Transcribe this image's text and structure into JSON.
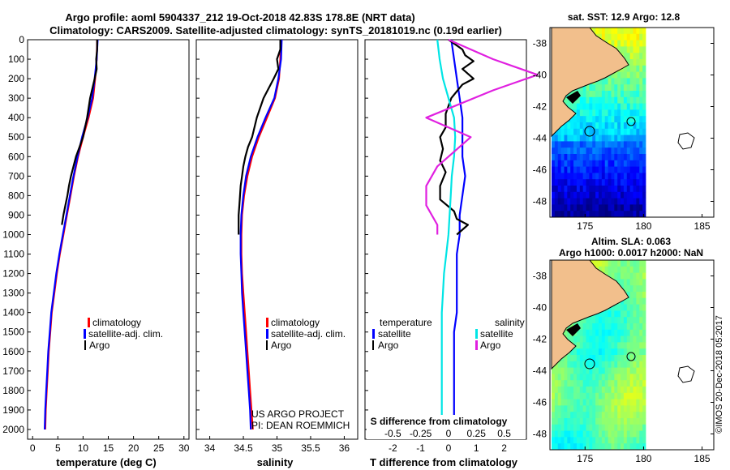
{
  "title_line1": "Argo profile: aoml 5904337_212 19-Oct-2018 42.83S 178.8E (NRT data)",
  "title_line2": "Climatology: CARS2009. Satellite-adjusted climatology: synTS_20181019.nc (0.19d earlier)",
  "credit_line1": "US ARGO PROJECT",
  "credit_line2": "PI: DEAN ROEMMICH",
  "copyright": "©IMOS 20-Dec-2018 05:2017",
  "colors": {
    "climatology": "#ff0000",
    "satellite": "#0000ff",
    "argo": "#000000",
    "sat_s": "#00e5e5",
    "argo_s": "#e020e0",
    "land": "#f2bf8c"
  },
  "chart_data": [
    {
      "id": "temperature",
      "type": "line",
      "xlabel": "temperature (deg C)",
      "ylabel": "",
      "xlim": [
        -1,
        31
      ],
      "ylim": [
        2050,
        0
      ],
      "xticks": [
        0,
        5,
        10,
        15,
        20,
        25,
        30
      ],
      "yticks": [
        0,
        100,
        200,
        300,
        400,
        500,
        600,
        700,
        800,
        900,
        1000,
        1100,
        1200,
        1300,
        1400,
        1500,
        1600,
        1700,
        1800,
        1900,
        2000
      ],
      "legend": [
        "climatology",
        "satellite-adj. clim.",
        "Argo"
      ],
      "series": [
        {
          "name": "climatology",
          "color": "#ff0000",
          "x": [
            12.8,
            12.7,
            12.4,
            12.0,
            11.1,
            10.0,
            9.0,
            8.2,
            7.5,
            6.8,
            6.1,
            5.4,
            4.8,
            4.3,
            3.8,
            3.5,
            3.2,
            3.0,
            2.8,
            2.6,
            2.5
          ],
          "y": [
            0,
            100,
            200,
            300,
            400,
            500,
            600,
            700,
            800,
            900,
            1000,
            1100,
            1200,
            1300,
            1400,
            1500,
            1600,
            1700,
            1800,
            1900,
            2000
          ]
        },
        {
          "name": "satellite-adj. clim.",
          "color": "#0000ff",
          "x": [
            12.9,
            12.7,
            12.3,
            11.8,
            10.9,
            9.8,
            8.9,
            8.1,
            7.4,
            6.7,
            6.0,
            5.3,
            4.7,
            4.2,
            3.7,
            3.4,
            3.1,
            2.9,
            2.7,
            2.5,
            2.4
          ],
          "y": [
            0,
            100,
            200,
            300,
            400,
            500,
            600,
            700,
            800,
            900,
            1000,
            1100,
            1200,
            1300,
            1400,
            1500,
            1600,
            1700,
            1800,
            1900,
            2000
          ]
        },
        {
          "name": "Argo",
          "color": "#000000",
          "x": [
            12.8,
            12.8,
            12.6,
            12.7,
            12.3,
            11.4,
            10.8,
            10.0,
            9.3,
            8.6,
            8.1,
            7.6,
            7.2,
            6.9,
            6.5,
            6.1,
            5.8
          ],
          "y": [
            0,
            50,
            100,
            150,
            200,
            300,
            400,
            500,
            550,
            600,
            650,
            700,
            750,
            800,
            850,
            900,
            950
          ]
        }
      ]
    },
    {
      "id": "salinity",
      "type": "line",
      "xlabel": "salinity",
      "ylabel": "",
      "xlim": [
        33.8,
        36.2
      ],
      "ylim": [
        2050,
        0
      ],
      "xticks": [
        34,
        34.5,
        35,
        35.5,
        36
      ],
      "legend": [
        "climatology",
        "satellite-adj. clim.",
        "Argo"
      ],
      "series": [
        {
          "name": "climatology",
          "color": "#ff0000",
          "x": [
            35.05,
            35.05,
            35.03,
            34.97,
            34.85,
            34.73,
            34.63,
            34.56,
            34.51,
            34.48,
            34.47,
            34.47,
            34.48,
            34.5,
            34.52,
            34.54,
            34.56,
            34.58,
            34.6,
            34.62,
            34.64
          ],
          "y": [
            0,
            100,
            200,
            300,
            400,
            500,
            600,
            700,
            800,
            900,
            1000,
            1100,
            1200,
            1300,
            1400,
            1500,
            1600,
            1700,
            1800,
            1900,
            2000
          ]
        },
        {
          "name": "satellite-adj. clim.",
          "color": "#0000ff",
          "x": [
            35.07,
            35.06,
            35.02,
            34.96,
            34.83,
            34.71,
            34.61,
            34.54,
            34.5,
            34.47,
            34.46,
            34.46,
            34.47,
            34.48,
            34.5,
            34.52,
            34.54,
            34.56,
            34.58,
            34.6,
            34.61
          ],
          "y": [
            0,
            100,
            200,
            300,
            400,
            500,
            600,
            700,
            800,
            900,
            1000,
            1100,
            1200,
            1300,
            1400,
            1500,
            1600,
            1700,
            1800,
            1900,
            2000
          ]
        },
        {
          "name": "Argo",
          "color": "#000000",
          "x": [
            35.05,
            35.05,
            35.0,
            35.02,
            34.95,
            34.8,
            34.7,
            34.63,
            34.57,
            34.53,
            34.5,
            34.48,
            34.46,
            34.45,
            34.44,
            34.43,
            34.43
          ],
          "y": [
            0,
            50,
            100,
            150,
            200,
            300,
            400,
            500,
            550,
            600,
            650,
            700,
            750,
            800,
            850,
            900,
            1000
          ]
        }
      ]
    },
    {
      "id": "differences",
      "type": "line",
      "xlabel": "T difference from climatology",
      "top_label": "S difference from climatology",
      "xlim": [
        -3,
        2.8
      ],
      "ylim": [
        2050,
        0
      ],
      "xticks": [
        -2,
        -1,
        0,
        1,
        2
      ],
      "top_ticks": [
        "-0.5",
        "-0.25",
        "0",
        "0.25",
        "0.5"
      ],
      "legend_left_title": "temperature",
      "legend_right_title": "salinity",
      "legend": [
        "satellite",
        "Argo",
        "satellite",
        "Argo"
      ],
      "series": [
        {
          "name": "temperature satellite",
          "color": "#0000ff",
          "x": [
            0.1,
            0.2,
            0.3,
            0.4,
            0.5,
            0.5,
            0.5,
            0.6,
            0.5,
            0.4,
            0.4,
            0.3,
            0.3,
            0.3,
            0.3,
            0.2,
            0.2,
            0.2,
            0.2,
            0.2,
            0.2
          ],
          "y": [
            0,
            100,
            200,
            300,
            400,
            500,
            600,
            700,
            800,
            900,
            1000,
            1100,
            1200,
            1300,
            1400,
            1500,
            1600,
            1700,
            1800,
            1900,
            2000
          ]
        },
        {
          "name": "temperature Argo",
          "color": "#000000",
          "x": [
            0,
            0.5,
            0.6,
            0.9,
            0.5,
            0.9,
            0.5,
            0.1,
            -0.1,
            -0.1,
            -0.3,
            -0.2,
            -0.3,
            -0.1,
            -0.3,
            -0.3,
            0.2,
            0.3,
            0.7,
            0.3
          ],
          "y": [
            0,
            50,
            80,
            110,
            150,
            200,
            230,
            300,
            380,
            450,
            500,
            560,
            620,
            680,
            750,
            820,
            880,
            920,
            950,
            1000
          ]
        },
        {
          "name": "salinity satellite",
          "color": "#00e5e5",
          "x": [
            -0.1,
            -0.08,
            -0.05,
            0,
            0.05,
            0.06,
            0.05,
            0.03,
            0.02,
            0.01,
            0,
            -0.02,
            -0.04,
            -0.05,
            -0.06,
            -0.06,
            -0.06,
            -0.06,
            -0.06,
            -0.06,
            -0.06
          ],
          "y": [
            0,
            100,
            200,
            300,
            400,
            500,
            600,
            700,
            800,
            900,
            1000,
            1100,
            1200,
            1300,
            1400,
            1500,
            1600,
            1700,
            1800,
            1900,
            2000
          ]
        },
        {
          "name": "salinity Argo",
          "color": "#e020e0",
          "x": [
            0,
            0.4,
            0.8,
            0.4,
            -0.2,
            0.2,
            -0.1,
            -0.2,
            -0.2,
            -0.1,
            -0.1
          ],
          "y": [
            0,
            100,
            180,
            260,
            400,
            500,
            650,
            750,
            850,
            950,
            1000
          ]
        }
      ]
    },
    {
      "id": "sst_map",
      "type": "heatmap",
      "title": "sat. SST: 12.9 Argo: 12.8",
      "x_ticks": [
        "175",
        "180",
        "185"
      ],
      "y_ticks": [
        "-38",
        "-40",
        "-42",
        "-44",
        "-46",
        "-48"
      ],
      "xlim": [
        172,
        186
      ],
      "ylim": [
        -49,
        -37
      ]
    },
    {
      "id": "sla_map",
      "type": "heatmap",
      "title": "Altim. SLA: 0.063",
      "subtitle": "Argo h1000: 0.0017 h2000: NaN",
      "x_ticks": [
        "175",
        "180",
        "185"
      ],
      "y_ticks": [
        "-38",
        "-40",
        "-42",
        "-44",
        "-46",
        "-48"
      ],
      "xlim": [
        172,
        186
      ],
      "ylim": [
        -49,
        -37
      ]
    }
  ]
}
